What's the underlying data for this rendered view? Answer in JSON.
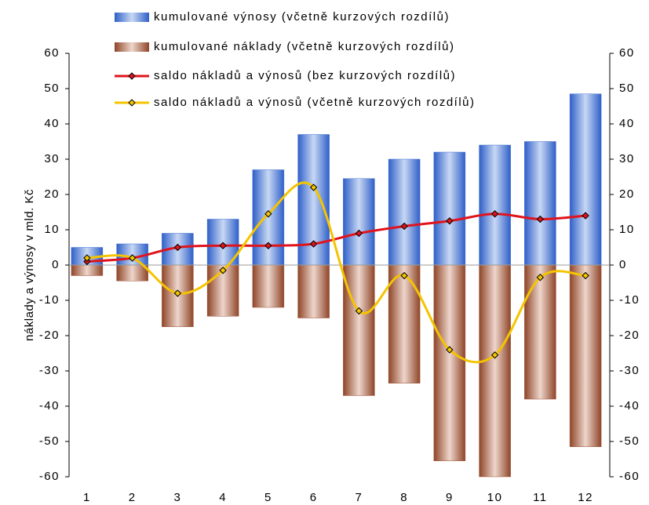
{
  "chart_data": {
    "type": "bar",
    "y_axis_label": "náklady a výnosy v mld. Kč",
    "categories": [
      "1",
      "2",
      "3",
      "4",
      "5",
      "6",
      "7",
      "8",
      "9",
      "10",
      "11",
      "12"
    ],
    "series": [
      {
        "name": "kumulované výnosy (včetně kurzových rozdílů)",
        "type": "bar",
        "color": "#3f6fd0",
        "values": [
          5,
          6,
          9,
          13,
          27,
          37,
          24.5,
          30,
          32,
          34,
          35,
          48.5
        ]
      },
      {
        "name": "kumulované náklady (včetně kurzových rozdílů)",
        "type": "bar",
        "color": "#a0553a",
        "values": [
          -3,
          -4.5,
          -17.5,
          -14.5,
          -12,
          -15,
          -37,
          -33.5,
          -55.5,
          -60,
          -38,
          -51.5
        ]
      },
      {
        "name": "saldo nákladů a výnosů (bez kurzových rozdílů)",
        "type": "line",
        "color": "#e0141c",
        "values": [
          1,
          2,
          5,
          5.5,
          5.5,
          6,
          9,
          11,
          12.5,
          14.5,
          13,
          14
        ]
      },
      {
        "name": "saldo nákladů a výnosů (včetně kurzových rozdílů)",
        "type": "line",
        "color": "#f5c400",
        "values": [
          2,
          2,
          -8,
          -1.5,
          14.5,
          22,
          -13,
          -3,
          -24,
          -25.5,
          -3.5,
          -3
        ]
      }
    ],
    "ylim": [
      -60,
      60
    ],
    "yticks": [
      -60,
      -50,
      -40,
      -30,
      -20,
      -10,
      0,
      10,
      20,
      30,
      40,
      50,
      60
    ],
    "y2lim": [
      -60,
      60
    ],
    "y2ticks": [
      -60,
      -50,
      -40,
      -30,
      -20,
      -10,
      0,
      10,
      20,
      30,
      40,
      50,
      60
    ]
  }
}
